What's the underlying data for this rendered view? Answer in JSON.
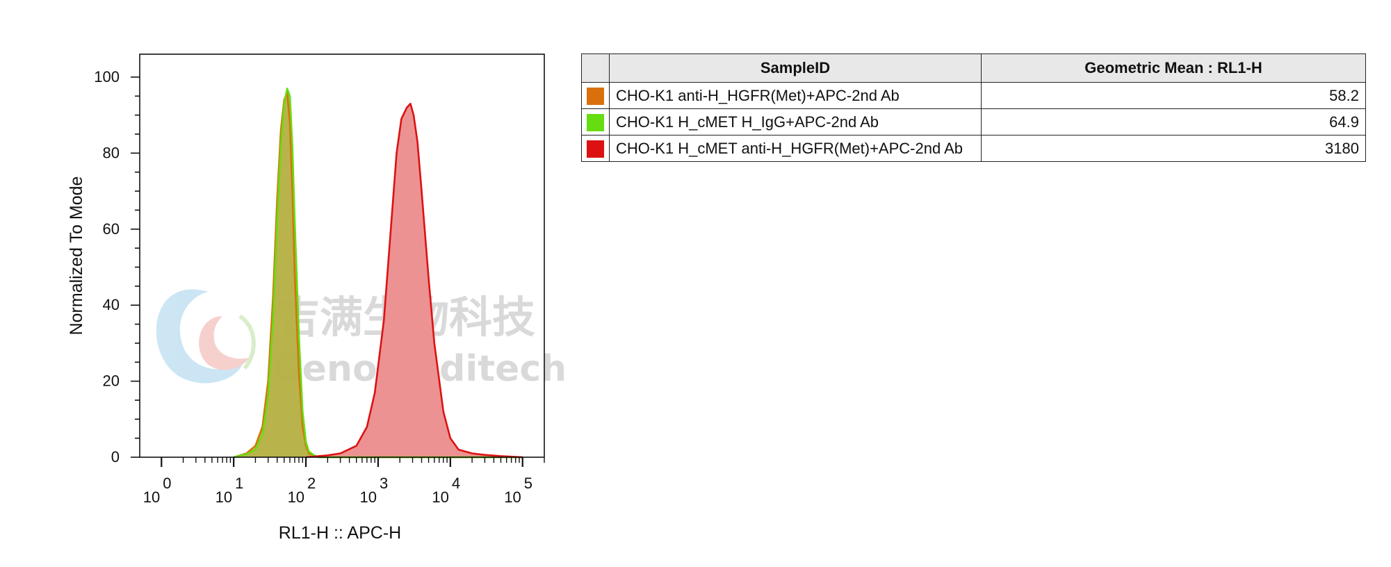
{
  "chart_data": {
    "type": "area",
    "subtype": "flow-cytometry-histogram",
    "xlabel": "RL1-H :: APC-H",
    "ylabel": "Normalized To Mode",
    "x_scale": "log",
    "xlim": [
      0.5,
      200000
    ],
    "ylim": [
      0,
      102
    ],
    "x_ticks": [
      {
        "base": "10",
        "exp": "0",
        "value": 1
      },
      {
        "base": "10",
        "exp": "1",
        "value": 10
      },
      {
        "base": "10",
        "exp": "2",
        "value": 100
      },
      {
        "base": "10",
        "exp": "3",
        "value": 1000
      },
      {
        "base": "10",
        "exp": "4",
        "value": 10000
      },
      {
        "base": "10",
        "exp": "5",
        "value": 100000
      }
    ],
    "y_ticks": [
      "0",
      "20",
      "40",
      "60",
      "80",
      "100"
    ],
    "y_tick_values": [
      0,
      20,
      40,
      60,
      80,
      100
    ],
    "series": [
      {
        "name": "CHO-K1 anti-H_HGFR(Met)+APC-2nd Ab",
        "color": "#d9700b",
        "fill": "#c8a63c",
        "x": [
          10,
          15,
          20,
          25,
          30,
          35,
          40,
          45,
          50,
          55,
          60,
          65,
          70,
          80,
          90,
          100,
          110,
          130,
          150,
          200,
          1000,
          100000
        ],
        "y": [
          0,
          1,
          3,
          8,
          20,
          42,
          68,
          86,
          94,
          96,
          88,
          70,
          48,
          22,
          8,
          3,
          1,
          0.5,
          0,
          0,
          0,
          0
        ]
      },
      {
        "name": "CHO-K1 H_cMET H_IgG+APC-2nd Ab",
        "color": "#66dd11",
        "fill": "#b5b34a",
        "x": [
          10,
          15,
          20,
          25,
          30,
          35,
          40,
          45,
          50,
          55,
          60,
          65,
          70,
          80,
          90,
          100,
          110,
          130,
          150,
          200,
          1000,
          100000
        ],
        "y": [
          0,
          0.8,
          2,
          6,
          16,
          36,
          62,
          82,
          93,
          97,
          95,
          82,
          62,
          32,
          12,
          4,
          1.5,
          0.5,
          0,
          0,
          0,
          0
        ]
      },
      {
        "name": "CHO-K1 H_cMET anti-H_HGFR(Met)+APC-2nd Ab",
        "color": "#dd1111",
        "fill": "#ec9292",
        "x": [
          100,
          200,
          300,
          500,
          700,
          900,
          1200,
          1500,
          1800,
          2100,
          2500,
          2800,
          3100,
          3500,
          4000,
          5000,
          6000,
          8000,
          10000,
          13000,
          20000,
          30000,
          50000,
          100000
        ],
        "y": [
          0,
          0.5,
          1,
          3,
          8,
          17,
          36,
          60,
          80,
          89,
          92,
          93,
          90,
          83,
          70,
          47,
          30,
          12,
          5,
          2,
          1,
          0.6,
          0.3,
          0
        ]
      }
    ]
  },
  "watermark": {
    "line1": "吉满生物科技",
    "line2": "Genomeditech"
  },
  "legend_table": {
    "headers": {
      "swatch": "",
      "sample_id": "SampleID",
      "geo_mean": "Geometric Mean : RL1-H"
    },
    "rows": [
      {
        "color": "#d9700b",
        "sample_id": "CHO-K1 anti-H_HGFR(Met)+APC-2nd Ab",
        "geo_mean": "58.2"
      },
      {
        "color": "#66dd11",
        "sample_id": "CHO-K1 H_cMET H_IgG+APC-2nd Ab",
        "geo_mean": "64.9"
      },
      {
        "color": "#dd1111",
        "sample_id": "CHO-K1 H_cMET anti-H_HGFR(Met)+APC-2nd Ab",
        "geo_mean": "3180"
      }
    ]
  }
}
